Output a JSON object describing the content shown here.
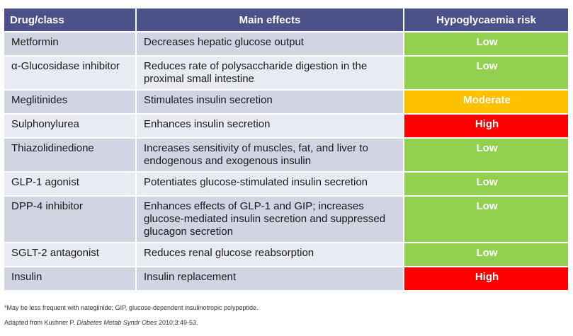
{
  "header": {
    "drug": "Drug/class",
    "effect": "Main effects",
    "risk": "Hypoglycaemia risk"
  },
  "colors": {
    "header_bg": "#4b5189",
    "row_odd": "#d1d4e3",
    "row_even": "#e9ebf2",
    "low": "#92d050",
    "moderate": "#ffc000",
    "high": "#ff0000"
  },
  "rows": [
    {
      "drug": "Metformin",
      "effect": "Decreases hepatic glucose output",
      "risk": "Low",
      "level": "low"
    },
    {
      "drug": "α-Glucosidase inhibitor",
      "effect": "Reduces rate of polysaccharide digestion in the proximal small intestine",
      "risk": "Low",
      "level": "low"
    },
    {
      "drug": "Meglitinides",
      "effect": "Stimulates insulin secretion",
      "risk": "Moderate",
      "level": "moderate"
    },
    {
      "drug": "Sulphonylurea",
      "effect": "Enhances insulin secretion",
      "risk": "High",
      "level": "high"
    },
    {
      "drug": "Thiazolidinedione",
      "effect": "Increases sensitivity of muscles, fat, and liver to endogenous and exogenous insulin",
      "risk": "Low",
      "level": "low"
    },
    {
      "drug": "GLP-1 agonist",
      "effect": "Potentiates glucose-stimulated insulin secretion",
      "risk": "Low",
      "level": "low"
    },
    {
      "drug": "DPP-4 inhibitor",
      "effect": "Enhances effects of GLP-1 and GIP; increases glucose-mediated insulin secretion and suppressed glucagon secretion",
      "risk": "Low",
      "level": "low"
    },
    {
      "drug": "SGLT-2 antagonist",
      "effect": "Reduces renal glucose reabsorption",
      "risk": "Low",
      "level": "low"
    },
    {
      "drug": "Insulin",
      "effect": "Insulin replacement",
      "risk": "High",
      "level": "high"
    }
  ],
  "footnotes": {
    "note": "*May be less frequent with nateglinide; GIP, glucose-dependent insulinotropic polypeptide.",
    "source_prefix": "Adapted from Kushner P. ",
    "source_journal": "Diabetes Metab Syndr Obes",
    "source_suffix": " 2010;3:49-53."
  }
}
